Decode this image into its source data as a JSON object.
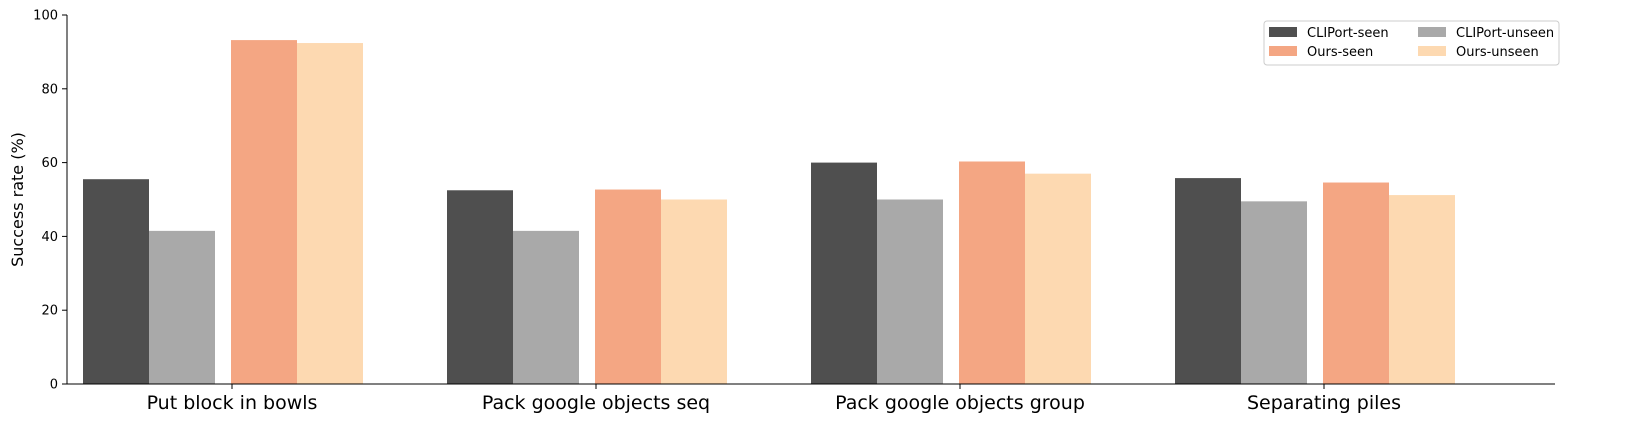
{
  "chart_data": {
    "type": "bar",
    "title": "",
    "xlabel": "",
    "ylabel": "Success rate (%)",
    "ylim": [
      0,
      100
    ],
    "yticks": [
      0,
      20,
      40,
      60,
      80,
      100
    ],
    "grid": false,
    "legend": {
      "position": "top-right",
      "columns": 2
    },
    "categories": [
      "Put block in bowls",
      "Pack google objects seq",
      "Pack google objects group",
      "Separating piles"
    ],
    "series": [
      {
        "name": "CLIPort-seen",
        "color": "#4f4f4f",
        "values": [
          55.5,
          52.5,
          60.0,
          55.8
        ]
      },
      {
        "name": "CLIPort-unseen",
        "color": "#a9a9a9",
        "values": [
          41.5,
          41.5,
          50.0,
          49.5
        ]
      },
      {
        "name": "Ours-seen",
        "color": "#f4a683",
        "values": [
          93.2,
          52.7,
          60.3,
          54.6
        ]
      },
      {
        "name": "Ours-unseen",
        "color": "#fdd9b1",
        "values": [
          92.4,
          50.0,
          57.0,
          51.2
        ]
      }
    ]
  }
}
